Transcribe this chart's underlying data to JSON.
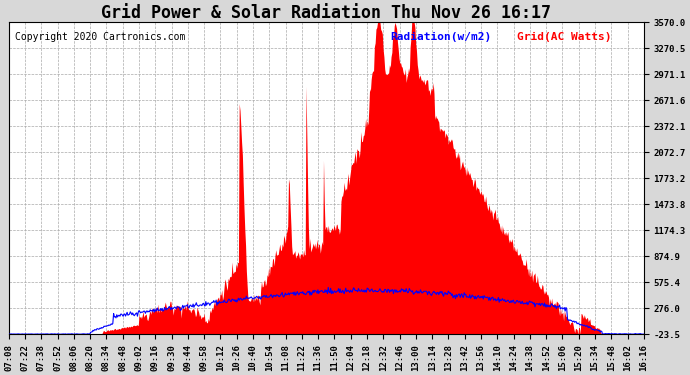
{
  "title": "Grid Power & Solar Radiation Thu Nov 26 16:17",
  "copyright": "Copyright 2020 Cartronics.com",
  "legend_radiation": "Radiation(w/m2)",
  "legend_grid": "Grid(AC Watts)",
  "ylim": [
    -23.5,
    3570.0
  ],
  "yticks": [
    3570.0,
    3270.5,
    2971.1,
    2671.6,
    2372.1,
    2072.7,
    1773.2,
    1473.8,
    1174.3,
    874.9,
    575.4,
    276.0,
    -23.5
  ],
  "bg_color": "#d8d8d8",
  "plot_bg_color": "#ffffff",
  "red_fill_color": "#ff0000",
  "blue_line_color": "#0000ff",
  "grid_color": "#aaaaaa",
  "xtick_labels": [
    "07:08",
    "07:22",
    "07:38",
    "07:52",
    "08:06",
    "08:20",
    "08:34",
    "08:48",
    "09:02",
    "09:16",
    "09:30",
    "09:44",
    "09:58",
    "10:12",
    "10:26",
    "10:40",
    "10:54",
    "11:08",
    "11:22",
    "11:36",
    "11:50",
    "12:04",
    "12:18",
    "12:32",
    "12:46",
    "13:00",
    "13:14",
    "13:28",
    "13:42",
    "13:56",
    "14:10",
    "14:24",
    "14:38",
    "14:52",
    "15:06",
    "15:20",
    "15:34",
    "15:48",
    "16:02",
    "16:16"
  ],
  "title_fontsize": 12,
  "tick_fontsize": 6.5,
  "copyright_fontsize": 7,
  "legend_fontsize": 8
}
